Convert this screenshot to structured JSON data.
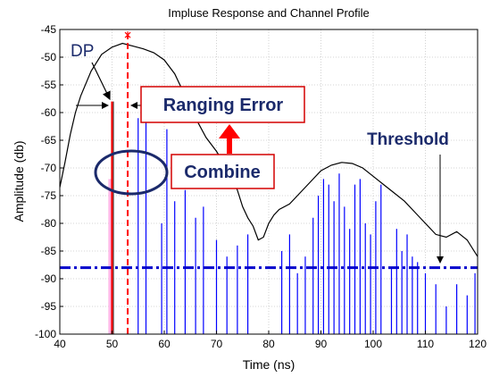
{
  "chart_data": {
    "type": "line",
    "title": "Impluse Response and Channel Profile",
    "xlabel": "Time (ns)",
    "ylabel": "Amplitude (db)",
    "xlim": [
      40,
      120
    ],
    "ylim": [
      -100,
      -45
    ],
    "xticks": [
      40,
      50,
      60,
      70,
      80,
      90,
      100,
      110,
      120
    ],
    "yticks": [
      -45,
      -50,
      -55,
      -60,
      -65,
      -70,
      -75,
      -80,
      -85,
      -90,
      -95,
      -100
    ],
    "grid": true,
    "series": [
      {
        "kind": "impulses",
        "color": "#0000ff",
        "x": [
          55,
          56.5,
          59.5,
          60.5,
          62,
          64,
          66,
          67.5,
          70,
          72,
          74,
          76,
          82.5,
          84,
          85.5,
          87,
          88.5,
          89.5,
          90.5,
          91.5,
          92.5,
          93.5,
          94.5,
          95.5,
          96.5,
          97.5,
          98.5,
          99.5,
          100.5,
          101.5,
          103.5,
          104.5,
          105.5,
          106.5,
          107.5,
          108.5,
          110,
          112,
          114,
          116,
          118,
          119.5
        ],
        "values": [
          -61,
          -60,
          -80,
          -63,
          -76,
          -74,
          -79,
          -77,
          -83,
          -86,
          -84,
          -82,
          -85,
          -82,
          -89,
          -86,
          -79,
          -75,
          -72,
          -73,
          -76,
          -71,
          -77,
          -81,
          -73,
          -72,
          -80,
          -82,
          -76,
          -73,
          -88,
          -81,
          -85,
          -82,
          -86,
          -87,
          -89,
          -91,
          -95,
          -91,
          -93,
          -89
        ]
      },
      {
        "kind": "profile",
        "color": "#000000",
        "x": [
          40,
          41,
          42,
          43,
          44,
          46,
          48,
          50,
          52,
          54,
          56,
          58,
          60,
          62,
          64,
          66,
          68,
          70,
          72,
          74,
          75,
          76,
          77,
          78,
          79,
          80,
          81,
          82,
          84,
          86,
          88,
          90,
          92,
          94,
          96,
          98,
          100,
          102,
          104,
          106,
          108,
          110,
          112,
          114,
          116,
          118,
          120
        ],
        "values": [
          -73.5,
          -69,
          -64,
          -60,
          -57,
          -52.5,
          -49.5,
          -48.2,
          -47.5,
          -48,
          -48.5,
          -49.2,
          -50.5,
          -53,
          -57,
          -61,
          -64.5,
          -67,
          -70,
          -74,
          -77,
          -79,
          -80.5,
          -83,
          -82.5,
          -80,
          -78.5,
          -77.5,
          -76.5,
          -74.5,
          -72.5,
          -70.5,
          -69.5,
          -69,
          -69.2,
          -70,
          -71.5,
          -73,
          -74.5,
          -76,
          -78,
          -80,
          -82,
          -82.5,
          -81.5,
          -83,
          -86
        ]
      }
    ],
    "markers": {
      "direct_path": {
        "x": 50,
        "value": -58
      },
      "estimate": {
        "x": 53,
        "value": -46
      },
      "threshold": -88
    },
    "annotations": {
      "dp": "DP",
      "ranging_error": "Ranging Error",
      "combine": "Combine",
      "threshold": "Threshold"
    }
  }
}
